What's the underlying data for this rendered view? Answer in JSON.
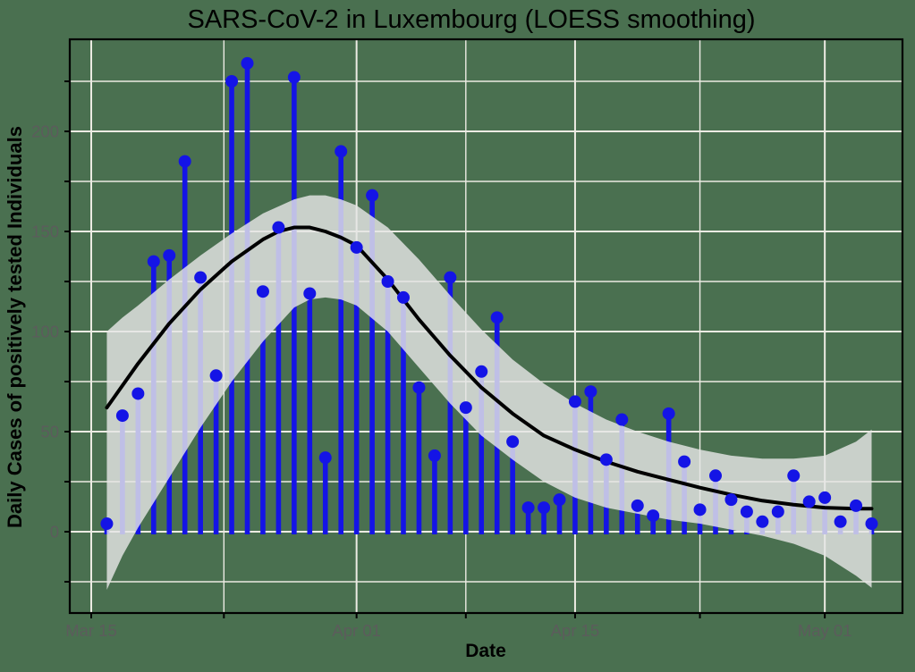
{
  "title": "SARS-CoV-2 in Luxembourg (LOESS smoothing)",
  "colors": {
    "background": "#4A7050",
    "gridline": "#ECEBE3",
    "stem_blue": "#1414E6",
    "point_blue": "#1414E6",
    "loess_line": "#000000",
    "confidence_band": "rgba(229,229,229,0.82)",
    "panel_border": "#000000",
    "tick_label": "#5C5C5C",
    "axis_tick": "#000000"
  },
  "x_axis": {
    "label": "Date",
    "major_tick_labels": [
      "Mar 15",
      "Apr 01",
      "Apr 15",
      "May 01"
    ],
    "major_tick_days": [
      0,
      17,
      31,
      47
    ],
    "minor_tick_days": [
      8.5,
      24,
      39
    ]
  },
  "y_axis": {
    "label": "Daily Cases of positively tested Individuals",
    "major_tick_values": [
      0,
      50,
      100,
      150,
      200
    ],
    "minor_tick_values": [
      -25,
      25,
      75,
      125,
      175,
      225
    ]
  },
  "chart_data": {
    "type": "lollipop-loess",
    "title": "SARS-CoV-2 in Luxembourg (LOESS smoothing)",
    "xlabel": "Date",
    "ylabel": "Daily Cases of positively tested Individuals",
    "x_range_days": [
      0,
      52
    ],
    "x_range_dates": [
      "Mar 15",
      "May 06"
    ],
    "ylim": [
      -41,
      246
    ],
    "grid": "on",
    "dates": [
      "Mar 16",
      "Mar 17",
      "Mar 18",
      "Mar 19",
      "Mar 20",
      "Mar 21",
      "Mar 22",
      "Mar 23",
      "Mar 24",
      "Mar 25",
      "Mar 26",
      "Mar 27",
      "Mar 28",
      "Mar 29",
      "Mar 30",
      "Mar 31",
      "Apr 01",
      "Apr 02",
      "Apr 03",
      "Apr 04",
      "Apr 05",
      "Apr 06",
      "Apr 07",
      "Apr 08",
      "Apr 09",
      "Apr 10",
      "Apr 11",
      "Apr 12",
      "Apr 13",
      "Apr 14",
      "Apr 15",
      "Apr 16",
      "Apr 17",
      "Apr 18",
      "Apr 19",
      "Apr 20",
      "Apr 21",
      "Apr 22",
      "Apr 23",
      "Apr 24",
      "Apr 25",
      "Apr 26",
      "Apr 27",
      "Apr 28",
      "Apr 29",
      "Apr 30",
      "May 01",
      "May 02",
      "May 03",
      "May 04"
    ],
    "day_offsets": [
      1,
      2,
      3,
      4,
      5,
      6,
      7,
      8,
      9,
      10,
      11,
      12,
      13,
      14,
      15,
      16,
      17,
      18,
      19,
      20,
      21,
      22,
      23,
      24,
      25,
      26,
      27,
      28,
      29,
      30,
      31,
      32,
      33,
      34,
      35,
      36,
      37,
      38,
      39,
      40,
      41,
      42,
      43,
      44,
      45,
      46,
      47,
      48,
      49,
      50
    ],
    "values": [
      4,
      58,
      69,
      135,
      138,
      185,
      127,
      78,
      225,
      234,
      120,
      152,
      227,
      119,
      37,
      190,
      142,
      168,
      125,
      117,
      72,
      38,
      127,
      62,
      80,
      107,
      45,
      12,
      12,
      16,
      65,
      70,
      36,
      56,
      13,
      8,
      59,
      35,
      11,
      28,
      16,
      10,
      5,
      10,
      28,
      15,
      17,
      5,
      13,
      4
    ],
    "loess": {
      "day": [
        1,
        3,
        5,
        7,
        9,
        11,
        12,
        13,
        14,
        15,
        16,
        17,
        19,
        21,
        23,
        25,
        27,
        29,
        31,
        33,
        35,
        37,
        39,
        41,
        43,
        45,
        47,
        49,
        50
      ],
      "value": [
        62,
        84,
        104,
        121,
        135,
        146,
        150,
        152,
        152,
        150,
        147,
        143,
        126,
        106,
        88,
        72,
        59,
        48,
        41,
        35,
        30,
        26,
        22,
        18.5,
        15.5,
        13.5,
        12,
        11.5,
        11.5
      ]
    },
    "confidence_band": {
      "day": [
        1,
        2,
        3,
        5,
        7,
        9,
        11,
        13,
        14,
        15,
        16,
        17,
        19,
        21,
        23,
        25,
        27,
        29,
        31,
        33,
        35,
        37,
        39,
        41,
        43,
        45,
        47,
        49,
        50
      ],
      "upper": [
        100,
        107,
        113,
        126,
        138,
        149,
        159,
        166,
        168,
        168,
        166,
        163,
        152,
        136,
        118,
        101,
        86,
        74,
        64,
        56,
        50,
        45,
        41,
        38,
        36.5,
        36.5,
        38,
        45,
        51
      ],
      "lower": [
        -29,
        -12,
        2,
        27,
        52,
        75,
        95,
        112,
        116,
        117,
        116,
        113,
        100,
        82,
        64,
        48,
        36,
        25,
        17,
        12,
        9,
        6,
        4,
        1,
        -2,
        -6,
        -12,
        -22,
        -28
      ]
    }
  }
}
